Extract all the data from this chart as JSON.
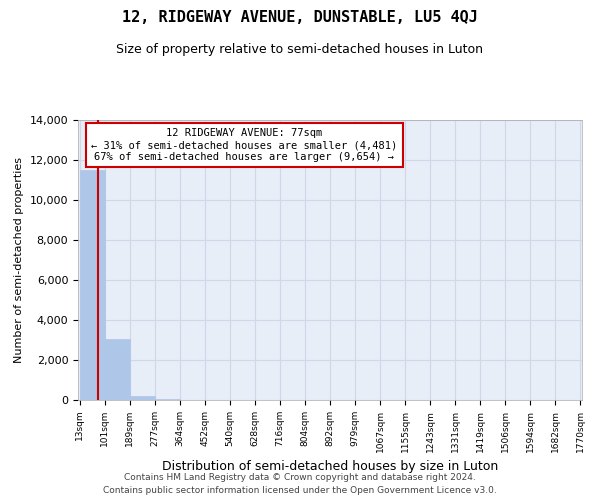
{
  "title": "12, RIDGEWAY AVENUE, DUNSTABLE, LU5 4QJ",
  "subtitle": "Size of property relative to semi-detached houses in Luton",
  "xlabel": "Distribution of semi-detached houses by size in Luton",
  "ylabel": "Number of semi-detached properties",
  "footer_line1": "Contains HM Land Registry data © Crown copyright and database right 2024.",
  "footer_line2": "Contains public sector information licensed under the Open Government Licence v3.0.",
  "annotation_line1": "12 RIDGEWAY AVENUE: 77sqm",
  "annotation_line2": "← 31% of semi-detached houses are smaller (4,481)",
  "annotation_line3": "67% of semi-detached houses are larger (9,654) →",
  "property_sqm": 77,
  "bin_edges": [
    13,
    101,
    189,
    277,
    364,
    452,
    540,
    628,
    716,
    804,
    892,
    979,
    1067,
    1155,
    1243,
    1331,
    1419,
    1506,
    1594,
    1682,
    1770
  ],
  "bin_labels": [
    "13sqm",
    "101sqm",
    "189sqm",
    "277sqm",
    "364sqm",
    "452sqm",
    "540sqm",
    "628sqm",
    "716sqm",
    "804sqm",
    "892sqm",
    "979sqm",
    "1067sqm",
    "1155sqm",
    "1243sqm",
    "1331sqm",
    "1419sqm",
    "1506sqm",
    "1594sqm",
    "1682sqm",
    "1770sqm"
  ],
  "bar_heights": [
    11500,
    3050,
    200,
    30,
    10,
    5,
    3,
    2,
    1,
    1,
    1,
    1,
    0,
    0,
    0,
    0,
    0,
    0,
    0,
    0
  ],
  "bar_color": "#aec6e8",
  "bar_edge_color": "#aec6e8",
  "grid_color": "#d0d8e8",
  "background_color": "#e8eef8",
  "annotation_box_color": "#ffffff",
  "annotation_border_color": "#cc0000",
  "property_line_color": "#cc0000",
  "ylim": [
    0,
    14000
  ],
  "yticks": [
    0,
    2000,
    4000,
    6000,
    8000,
    10000,
    12000,
    14000
  ]
}
